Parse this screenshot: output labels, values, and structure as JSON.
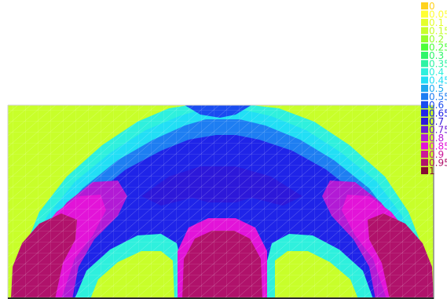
{
  "legend": {
    "items": [
      {
        "label": "0",
        "color": "#ffd21e"
      },
      {
        "label": "0.05",
        "color": "#ffff33"
      },
      {
        "label": "0.1",
        "color": "#e4ff2c"
      },
      {
        "label": "0.15",
        "color": "#c8ff2a"
      },
      {
        "label": "0.2",
        "color": "#95ff2b"
      },
      {
        "label": "0.25",
        "color": "#4dff3a"
      },
      {
        "label": "0.3",
        "color": "#2ff56a"
      },
      {
        "label": "0.35",
        "color": "#2ff3a4"
      },
      {
        "label": "0.4",
        "color": "#2ff0dd"
      },
      {
        "label": "0.45",
        "color": "#22dff5"
      },
      {
        "label": "0.5",
        "color": "#1faaf0"
      },
      {
        "label": "0.55",
        "color": "#1e7ef2"
      },
      {
        "label": "0.6",
        "color": "#1a4cf0"
      },
      {
        "label": "0.65",
        "color": "#1f24e8"
      },
      {
        "label": "0.7",
        "color": "#2d18d9"
      },
      {
        "label": "0.75",
        "color": "#6b1bd6"
      },
      {
        "label": "0.8",
        "color": "#b21bd5"
      },
      {
        "label": "0.85",
        "color": "#e214d8"
      },
      {
        "label": "0.9",
        "color": "#cc1899"
      },
      {
        "label": "0.95",
        "color": "#b0126b"
      },
      {
        "label": "1",
        "color": "#850c34"
      }
    ]
  },
  "colors": {
    "background": "#ffffff",
    "mesh_line": "#ffffff",
    "frame_bottom": "#2a2a2a",
    "frame_right": "#8a8a8a"
  }
}
